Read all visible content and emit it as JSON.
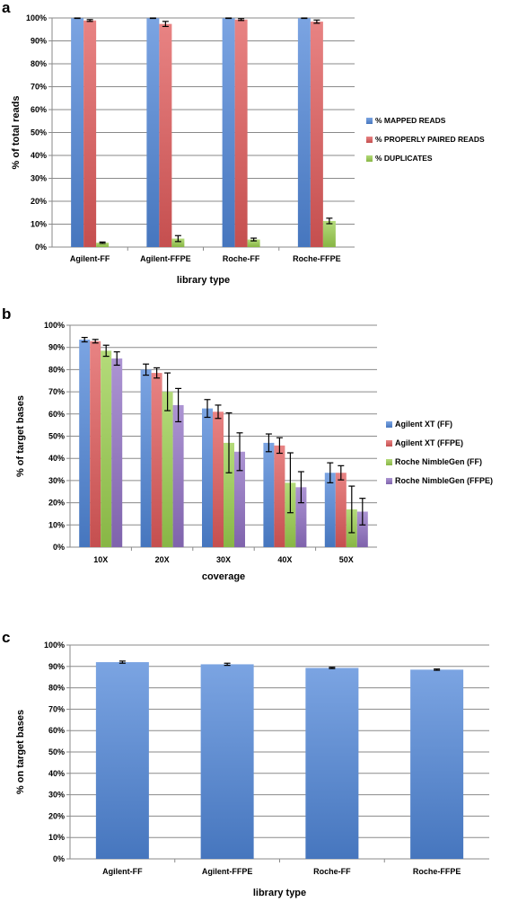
{
  "colors": {
    "mapped": "#4f86d8",
    "paired": "#e05a5a",
    "duplicates": "#9bcf4e",
    "agilent_ff": "#4f86d8",
    "agilent_ffpe": "#e05a5a",
    "roche_ff": "#9bcf4e",
    "roche_ffpe": "#9070c4",
    "grid": "#8a8a8a",
    "error_bar": "#000000"
  },
  "chart_data": [
    {
      "panel": "a",
      "type": "bar",
      "title": "",
      "xlabel": "library type",
      "ylabel": "% of total reads",
      "ylim": [
        0,
        100
      ],
      "yticks": [
        "0%",
        "10%",
        "20%",
        "30%",
        "40%",
        "50%",
        "60%",
        "70%",
        "80%",
        "90%",
        "100%"
      ],
      "grid": true,
      "legend_position": "right",
      "categories": [
        "Agilent-FF",
        "Agilent-FFPE",
        "Roche-FF",
        "Roche-FFPE"
      ],
      "series": [
        {
          "name": "% MAPPED READS",
          "color_key": "mapped",
          "values": [
            99.9,
            99.9,
            99.9,
            99.9
          ],
          "errors": [
            0.1,
            0.1,
            0.1,
            0.1
          ]
        },
        {
          "name": "% PROPERLY PAIRED READS",
          "color_key": "paired",
          "values": [
            98.9,
            97.4,
            99.3,
            98.4
          ],
          "errors": [
            0.4,
            1.1,
            0.4,
            0.7
          ]
        },
        {
          "name": "% DUPLICATES",
          "color_key": "duplicates",
          "values": [
            1.9,
            3.7,
            3.3,
            11.4
          ],
          "errors": [
            0.3,
            1.3,
            0.6,
            1.2
          ]
        }
      ]
    },
    {
      "panel": "b",
      "type": "bar",
      "title": "",
      "xlabel": "coverage",
      "ylabel": "% of target bases",
      "ylim": [
        0,
        100
      ],
      "yticks": [
        "0%",
        "10%",
        "20%",
        "30%",
        "40%",
        "50%",
        "60%",
        "70%",
        "80%",
        "90%",
        "100%"
      ],
      "grid": true,
      "legend_position": "right",
      "categories": [
        "10X",
        "20X",
        "30X",
        "40X",
        "50X"
      ],
      "series": [
        {
          "name": "Agilent XT (FF)",
          "color_key": "agilent_ff",
          "values": [
            93.5,
            80,
            62.5,
            47,
            33.5
          ],
          "errors": [
            1,
            2.5,
            4,
            4,
            4.5
          ]
        },
        {
          "name": "Agilent XT (FFPE)",
          "color_key": "agilent_ffpe",
          "values": [
            92.8,
            78.5,
            61,
            45.8,
            33.5
          ],
          "errors": [
            0.8,
            2.3,
            3,
            3.5,
            3.2
          ]
        },
        {
          "name": "Roche NimbleGen (FF)",
          "color_key": "roche_ff",
          "values": [
            88.5,
            70,
            47,
            29,
            17
          ],
          "errors": [
            2.5,
            8.5,
            13.5,
            13.5,
            10.5
          ]
        },
        {
          "name": "Roche NimbleGen (FFPE)",
          "color_key": "roche_ffpe",
          "values": [
            85,
            64,
            43,
            27,
            16
          ],
          "errors": [
            3,
            7.5,
            8.5,
            7,
            6
          ]
        }
      ]
    },
    {
      "panel": "c",
      "type": "bar",
      "title": "",
      "xlabel": "library type",
      "ylabel": "% on target bases",
      "ylim": [
        0,
        100
      ],
      "yticks": [
        "0%",
        "10%",
        "20%",
        "30%",
        "40%",
        "50%",
        "60%",
        "70%",
        "80%",
        "90%",
        "100%"
      ],
      "grid": true,
      "categories": [
        "Agilent-FF",
        "Agilent-FFPE",
        "Roche-FF",
        "Roche-FFPE"
      ],
      "series": [
        {
          "color_key": "mapped",
          "values": [
            92,
            91,
            89.3,
            88.5
          ],
          "errors": [
            0.5,
            0.5,
            0.3,
            0.3
          ]
        }
      ]
    }
  ]
}
